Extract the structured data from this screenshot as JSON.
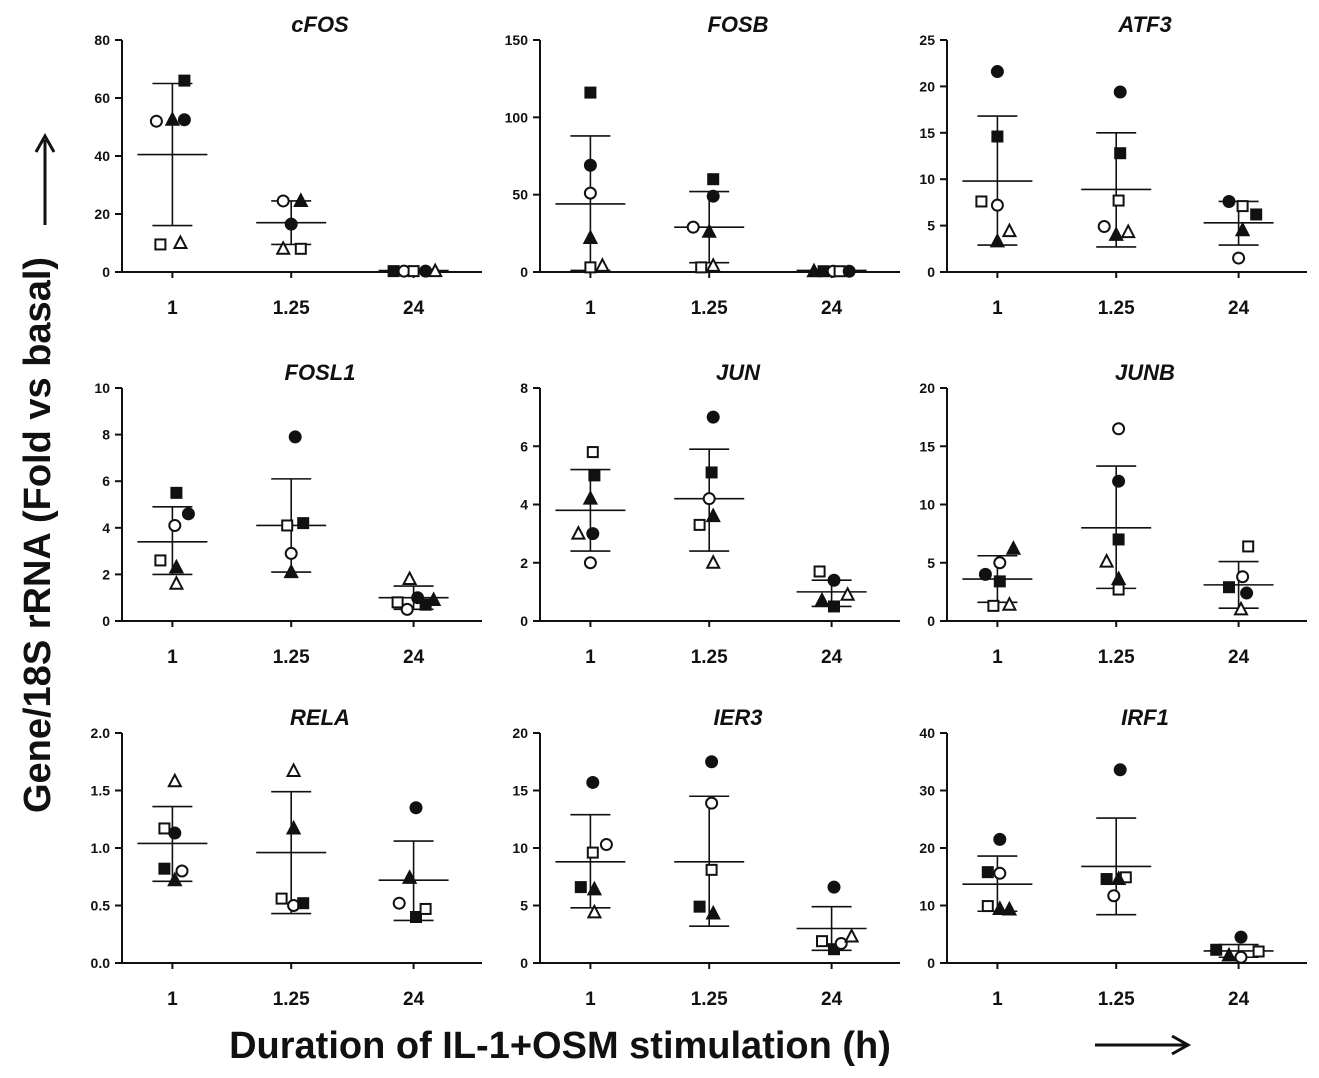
{
  "ylabel": "Gene/18S rRNA (Fold vs basal)",
  "xlabel": "Duration of IL-1+OSM stimulation (h)",
  "chart_data": [
    {
      "type": "scatter",
      "title": "cFOS",
      "categories": [
        "1",
        "1.25",
        "24"
      ],
      "ylim": [
        0,
        80
      ],
      "yticks": [
        0,
        20,
        40,
        60,
        80
      ],
      "tick_labels": [
        "0",
        "20",
        "40",
        "60",
        "80"
      ],
      "mean": [
        40.5,
        17,
        0.5
      ],
      "sd_upper": [
        65,
        24.5,
        0.8
      ],
      "sd_lower": [
        16,
        9.5,
        0.2
      ],
      "points": [
        [
          {
            "m": "sf",
            "y": 66,
            "dx": 0.15
          },
          {
            "m": "co",
            "y": 52,
            "dx": -0.2
          },
          {
            "m": "tf",
            "y": 52.5,
            "dx": 0
          },
          {
            "m": "cf",
            "y": 52.5,
            "dx": 0.15
          },
          {
            "m": "so",
            "y": 9.5,
            "dx": -0.15
          },
          {
            "m": "to",
            "y": 10,
            "dx": 0.1
          }
        ],
        [
          {
            "m": "co",
            "y": 24.5,
            "dx": -0.1
          },
          {
            "m": "tf",
            "y": 24.5,
            "dx": 0.12
          },
          {
            "m": "cf",
            "y": 16.5,
            "dx": 0
          },
          {
            "m": "to",
            "y": 8,
            "dx": -0.1
          },
          {
            "m": "so",
            "y": 8,
            "dx": 0.12
          }
        ],
        [
          {
            "m": "sf",
            "y": 0.3,
            "dx": -0.25
          },
          {
            "m": "co",
            "y": 0.3,
            "dx": -0.12
          },
          {
            "m": "so",
            "y": 0.3,
            "dx": 0
          },
          {
            "m": "cf",
            "y": 0.3,
            "dx": 0.15
          },
          {
            "m": "to",
            "y": 0.3,
            "dx": 0.27
          }
        ]
      ]
    },
    {
      "type": "scatter",
      "title": "FOSB",
      "categories": [
        "1",
        "1.25",
        "24"
      ],
      "ylim": [
        0,
        150
      ],
      "yticks": [
        0,
        50,
        100,
        150
      ],
      "tick_labels": [
        "0",
        "50",
        "100",
        "150"
      ],
      "mean": [
        44,
        29,
        1
      ],
      "sd_upper": [
        88,
        52,
        1.5
      ],
      "sd_lower": [
        1,
        6,
        0.5
      ],
      "points": [
        [
          {
            "m": "sf",
            "y": 116,
            "dx": 0
          },
          {
            "m": "cf",
            "y": 69,
            "dx": 0
          },
          {
            "m": "co",
            "y": 51,
            "dx": 0
          },
          {
            "m": "tf",
            "y": 22,
            "dx": 0
          },
          {
            "m": "so",
            "y": 3,
            "dx": 0
          },
          {
            "m": "to",
            "y": 4,
            "dx": 0.15
          }
        ],
        [
          {
            "m": "sf",
            "y": 60,
            "dx": 0.05
          },
          {
            "m": "cf",
            "y": 49,
            "dx": 0.05
          },
          {
            "m": "co",
            "y": 29,
            "dx": -0.2
          },
          {
            "m": "tf",
            "y": 26,
            "dx": 0
          },
          {
            "m": "so",
            "y": 3,
            "dx": -0.1
          },
          {
            "m": "to",
            "y": 4,
            "dx": 0.05
          }
        ],
        [
          {
            "m": "tf",
            "y": 0.5,
            "dx": -0.22
          },
          {
            "m": "sf",
            "y": 0.5,
            "dx": -0.1
          },
          {
            "m": "co",
            "y": 0.5,
            "dx": 0.02
          },
          {
            "m": "so",
            "y": 0.5,
            "dx": 0.1
          },
          {
            "m": "cf",
            "y": 0.5,
            "dx": 0.22
          }
        ]
      ]
    },
    {
      "type": "scatter",
      "title": "ATF3",
      "categories": [
        "1",
        "1.25",
        "24"
      ],
      "ylim": [
        0,
        25
      ],
      "yticks": [
        0,
        5,
        10,
        15,
        20,
        25
      ],
      "tick_labels": [
        "0",
        "5",
        "10",
        "15",
        "20",
        "25"
      ],
      "mean": [
        9.8,
        8.9,
        5.3
      ],
      "sd_upper": [
        16.8,
        15
      ],
      "sd_lower": [
        2.9,
        2.7,
        2.9
      ],
      "sd_upper_24": 7.6,
      "points": [
        [
          {
            "m": "cf",
            "y": 21.6,
            "dx": 0
          },
          {
            "m": "sf",
            "y": 14.6,
            "dx": 0
          },
          {
            "m": "so",
            "y": 7.6,
            "dx": -0.2
          },
          {
            "m": "co",
            "y": 7.2,
            "dx": 0
          },
          {
            "m": "to",
            "y": 4.4,
            "dx": 0.15
          },
          {
            "m": "tf",
            "y": 3.3,
            "dx": 0
          }
        ],
        [
          {
            "m": "cf",
            "y": 19.4,
            "dx": 0.05
          },
          {
            "m": "sf",
            "y": 12.8,
            "dx": 0.05
          },
          {
            "m": "so",
            "y": 7.7,
            "dx": 0.03
          },
          {
            "m": "co",
            "y": 4.9,
            "dx": -0.15
          },
          {
            "m": "tf",
            "y": 4,
            "dx": 0
          },
          {
            "m": "to",
            "y": 4.3,
            "dx": 0.15
          }
        ],
        [
          {
            "m": "cf",
            "y": 7.6,
            "dx": -0.12
          },
          {
            "m": "so",
            "y": 7.1,
            "dx": 0.05
          },
          {
            "m": "sf",
            "y": 6.2,
            "dx": 0.22
          },
          {
            "m": "tf",
            "y": 4.5,
            "dx": 0.05
          },
          {
            "m": "co",
            "y": 1.5,
            "dx": 0
          }
        ]
      ]
    },
    {
      "type": "scatter",
      "title": "FOSL1",
      "categories": [
        "1",
        "1.25",
        "24"
      ],
      "ylim": [
        0,
        10
      ],
      "yticks": [
        0,
        2,
        4,
        6,
        8,
        10
      ],
      "tick_labels": [
        "0",
        "2",
        "4",
        "6",
        "8",
        "10"
      ],
      "mean": [
        3.4,
        4.1,
        1
      ],
      "sd_upper": [
        4.9,
        6.1,
        1.5
      ],
      "sd_lower": [
        2,
        2.1,
        0.5
      ],
      "points": [
        [
          {
            "m": "sf",
            "y": 5.5,
            "dx": 0.05
          },
          {
            "m": "cf",
            "y": 4.6,
            "dx": 0.2
          },
          {
            "m": "co",
            "y": 4.1,
            "dx": 0.03
          },
          {
            "m": "so",
            "y": 2.6,
            "dx": -0.15
          },
          {
            "m": "tf",
            "y": 2.3,
            "dx": 0.05
          },
          {
            "m": "to",
            "y": 1.6,
            "dx": 0.05
          }
        ],
        [
          {
            "m": "cf",
            "y": 7.9,
            "dx": 0.05
          },
          {
            "m": "so",
            "y": 4.1,
            "dx": -0.05
          },
          {
            "m": "sf",
            "y": 4.2,
            "dx": 0.15
          },
          {
            "m": "co",
            "y": 2.9,
            "dx": 0
          },
          {
            "m": "tf",
            "y": 2.1,
            "dx": 0
          }
        ],
        [
          {
            "m": "to",
            "y": 1.8,
            "dx": -0.05
          },
          {
            "m": "so",
            "y": 0.8,
            "dx": -0.2
          },
          {
            "m": "cf",
            "y": 1,
            "dx": 0.05
          },
          {
            "m": "co",
            "y": 0.5,
            "dx": -0.08
          },
          {
            "m": "sf",
            "y": 0.7,
            "dx": 0.15
          },
          {
            "m": "tf",
            "y": 0.9,
            "dx": 0.25
          }
        ]
      ]
    },
    {
      "type": "scatter",
      "title": "JUN",
      "categories": [
        "1",
        "1.25",
        "24"
      ],
      "ylim": [
        0,
        8
      ],
      "yticks": [
        0,
        2,
        4,
        6,
        8
      ],
      "tick_labels": [
        "0",
        "2",
        "4",
        "6",
        "8"
      ],
      "mean": [
        3.8,
        4.2,
        1
      ],
      "sd_upper": [
        5.2,
        5.9,
        1.4
      ],
      "sd_lower": [
        2.4,
        2.4,
        0.5
      ],
      "points": [
        [
          {
            "m": "so",
            "y": 5.8,
            "dx": 0.03
          },
          {
            "m": "sf",
            "y": 5,
            "dx": 0.05
          },
          {
            "m": "tf",
            "y": 4.2,
            "dx": 0
          },
          {
            "m": "to",
            "y": 3,
            "dx": -0.15
          },
          {
            "m": "cf",
            "y": 3,
            "dx": 0.03
          },
          {
            "m": "co",
            "y": 2,
            "dx": 0
          }
        ],
        [
          {
            "m": "cf",
            "y": 7,
            "dx": 0.05
          },
          {
            "m": "sf",
            "y": 5.1,
            "dx": 0.03
          },
          {
            "m": "co",
            "y": 4.2,
            "dx": 0
          },
          {
            "m": "so",
            "y": 3.3,
            "dx": -0.12
          },
          {
            "m": "tf",
            "y": 3.6,
            "dx": 0.05
          },
          {
            "m": "to",
            "y": 2,
            "dx": 0.05
          }
        ],
        [
          {
            "m": "so",
            "y": 1.7,
            "dx": -0.15
          },
          {
            "m": "cf",
            "y": 1.4,
            "dx": 0.03
          },
          {
            "m": "tf",
            "y": 0.7,
            "dx": -0.12
          },
          {
            "m": "sf",
            "y": 0.5,
            "dx": 0.03
          },
          {
            "m": "to",
            "y": 0.9,
            "dx": 0.2
          }
        ]
      ]
    },
    {
      "type": "scatter",
      "title": "JUNB",
      "categories": [
        "1",
        "1.25",
        "24"
      ],
      "ylim": [
        0,
        20
      ],
      "yticks": [
        0,
        5,
        10,
        15,
        20
      ],
      "tick_labels": [
        "0",
        "5",
        "10",
        "15",
        "20"
      ],
      "mean": [
        3.6,
        8,
        3.1
      ],
      "sd_upper": [
        5.6,
        13.3,
        5.1
      ],
      "sd_lower": [
        1.6,
        2.8,
        1.1
      ],
      "points": [
        [
          {
            "m": "tf",
            "y": 6.2,
            "dx": 0.2
          },
          {
            "m": "co",
            "y": 5,
            "dx": 0.03
          },
          {
            "m": "cf",
            "y": 4,
            "dx": -0.15
          },
          {
            "m": "sf",
            "y": 3.4,
            "dx": 0.03
          },
          {
            "m": "so",
            "y": 1.3,
            "dx": -0.05
          },
          {
            "m": "to",
            "y": 1.4,
            "dx": 0.15
          }
        ],
        [
          {
            "m": "co",
            "y": 16.5,
            "dx": 0.03
          },
          {
            "m": "cf",
            "y": 12,
            "dx": 0.03
          },
          {
            "m": "sf",
            "y": 7,
            "dx": 0.03
          },
          {
            "m": "to",
            "y": 5.1,
            "dx": -0.12
          },
          {
            "m": "tf",
            "y": 3.6,
            "dx": 0.03
          },
          {
            "m": "so",
            "y": 2.7,
            "dx": 0.03
          }
        ],
        [
          {
            "m": "so",
            "y": 6.4,
            "dx": 0.12
          },
          {
            "m": "co",
            "y": 3.8,
            "dx": 0.05
          },
          {
            "m": "sf",
            "y": 2.9,
            "dx": -0.12
          },
          {
            "m": "cf",
            "y": 2.4,
            "dx": 0.1
          },
          {
            "m": "to",
            "y": 1,
            "dx": 0.03
          }
        ]
      ]
    },
    {
      "type": "scatter",
      "title": "RELA",
      "categories": [
        "1",
        "1.25",
        "24"
      ],
      "ylim": [
        0,
        2
      ],
      "yticks": [
        0,
        0.5,
        1,
        1.5,
        2
      ],
      "tick_labels": [
        "0.0",
        "0.5",
        "1.0",
        "1.5",
        "2.0"
      ],
      "mean": [
        1.04,
        0.96,
        0.72
      ],
      "sd_upper": [
        1.36,
        1.49,
        1.06
      ],
      "sd_lower": [
        0.71,
        0.43,
        0.37
      ],
      "points": [
        [
          {
            "m": "to",
            "y": 1.58,
            "dx": 0.03
          },
          {
            "m": "so",
            "y": 1.17,
            "dx": -0.1
          },
          {
            "m": "cf",
            "y": 1.13,
            "dx": 0.03
          },
          {
            "m": "sf",
            "y": 0.82,
            "dx": -0.1
          },
          {
            "m": "co",
            "y": 0.8,
            "dx": 0.12
          },
          {
            "m": "tf",
            "y": 0.72,
            "dx": 0.03
          }
        ],
        [
          {
            "m": "to",
            "y": 1.67,
            "dx": 0.03
          },
          {
            "m": "tf",
            "y": 1.17,
            "dx": 0.03
          },
          {
            "m": "so",
            "y": 0.56,
            "dx": -0.12
          },
          {
            "m": "co",
            "y": 0.5,
            "dx": 0.03
          },
          {
            "m": "sf",
            "y": 0.52,
            "dx": 0.15
          }
        ],
        [
          {
            "m": "cf",
            "y": 1.35,
            "dx": 0.03
          },
          {
            "m": "tf",
            "y": 0.74,
            "dx": -0.05
          },
          {
            "m": "co",
            "y": 0.52,
            "dx": -0.18
          },
          {
            "m": "sf",
            "y": 0.4,
            "dx": 0.03
          },
          {
            "m": "so",
            "y": 0.47,
            "dx": 0.15
          }
        ]
      ]
    },
    {
      "type": "scatter",
      "title": "IER3",
      "categories": [
        "1",
        "1.25",
        "24"
      ],
      "ylim": [
        0,
        20
      ],
      "yticks": [
        0,
        5,
        10,
        15,
        20
      ],
      "tick_labels": [
        "0",
        "5",
        "10",
        "15",
        "20"
      ],
      "mean": [
        8.8,
        8.8,
        3
      ],
      "sd_upper": [
        12.9,
        14.5,
        4.9
      ],
      "sd_lower": [
        4.8,
        3.2,
        1.1
      ],
      "points": [
        [
          {
            "m": "cf",
            "y": 15.7,
            "dx": 0.03
          },
          {
            "m": "co",
            "y": 10.3,
            "dx": 0.2
          },
          {
            "m": "so",
            "y": 9.6,
            "dx": 0.03
          },
          {
            "m": "sf",
            "y": 6.6,
            "dx": -0.12
          },
          {
            "m": "tf",
            "y": 6.4,
            "dx": 0.05
          },
          {
            "m": "to",
            "y": 4.4,
            "dx": 0.05
          }
        ],
        [
          {
            "m": "cf",
            "y": 17.5,
            "dx": 0.03
          },
          {
            "m": "co",
            "y": 13.9,
            "dx": 0.03
          },
          {
            "m": "so",
            "y": 8.1,
            "dx": 0.03
          },
          {
            "m": "sf",
            "y": 4.9,
            "dx": -0.12
          },
          {
            "m": "tf",
            "y": 4.3,
            "dx": 0.05
          }
        ],
        [
          {
            "m": "cf",
            "y": 6.6,
            "dx": 0.03
          },
          {
            "m": "so",
            "y": 1.9,
            "dx": -0.12
          },
          {
            "m": "sf",
            "y": 1.2,
            "dx": 0.03
          },
          {
            "m": "co",
            "y": 1.7,
            "dx": 0.12
          },
          {
            "m": "to",
            "y": 2.3,
            "dx": 0.25
          }
        ]
      ]
    },
    {
      "type": "scatter",
      "title": "IRF1",
      "categories": [
        "1",
        "1.25",
        "24"
      ],
      "ylim": [
        0,
        40
      ],
      "yticks": [
        0,
        10,
        20,
        30,
        40
      ],
      "tick_labels": [
        "0",
        "10",
        "20",
        "30",
        "40"
      ],
      "mean": [
        13.7,
        16.8,
        2.1
      ],
      "sd_upper": [
        18.6,
        25.2,
        3.2
      ],
      "sd_lower": [
        9,
        8.4,
        1
      ],
      "points": [
        [
          {
            "m": "cf",
            "y": 21.5,
            "dx": 0.03
          },
          {
            "m": "co",
            "y": 15.6,
            "dx": 0.03
          },
          {
            "m": "sf",
            "y": 15.8,
            "dx": -0.12
          },
          {
            "m": "so",
            "y": 9.9,
            "dx": -0.12
          },
          {
            "m": "tf",
            "y": 9.4,
            "dx": 0.03
          },
          {
            "m": "tf",
            "y": 9.3,
            "dx": 0.15
          }
        ],
        [
          {
            "m": "cf",
            "y": 33.6,
            "dx": 0.05
          },
          {
            "m": "so",
            "y": 14.9,
            "dx": 0.12
          },
          {
            "m": "sf",
            "y": 14.6,
            "dx": -0.12
          },
          {
            "m": "tf",
            "y": 14.6,
            "dx": 0.03
          },
          {
            "m": "co",
            "y": 11.7,
            "dx": -0.03
          }
        ],
        [
          {
            "m": "cf",
            "y": 4.5,
            "dx": 0.03
          },
          {
            "m": "sf",
            "y": 2.3,
            "dx": -0.28
          },
          {
            "m": "tf",
            "y": 1.3,
            "dx": -0.12
          },
          {
            "m": "co",
            "y": 1,
            "dx": 0.03
          },
          {
            "m": "so",
            "y": 2,
            "dx": 0.25
          }
        ]
      ]
    }
  ]
}
